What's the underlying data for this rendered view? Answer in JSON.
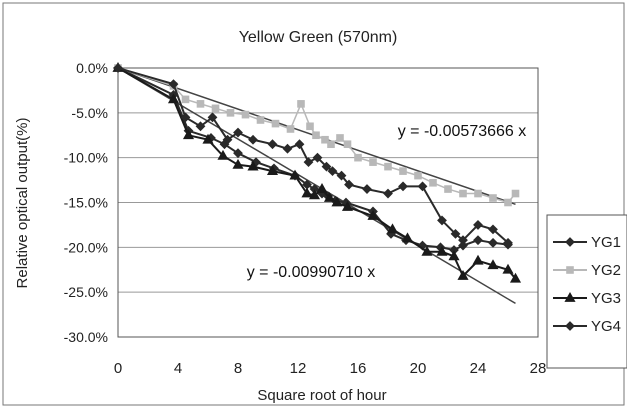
{
  "chart_data": {
    "type": "line",
    "title": "Yellow Green (570nm)",
    "xlabel": "Square root of hour",
    "ylabel": "Relative optical output(%)",
    "xlim": [
      0,
      28
    ],
    "ylim": [
      -30,
      0
    ],
    "x_ticks": [
      0,
      4,
      8,
      12,
      16,
      20,
      24,
      28
    ],
    "x_tick_labels": [
      "0",
      "4",
      "8",
      "12",
      "16",
      "20",
      "24",
      "28"
    ],
    "y_ticks": [
      0,
      -5,
      -10,
      -15,
      -20,
      -25,
      -30
    ],
    "y_tick_labels": [
      "0.0%",
      "-5.0%",
      "-10.0%",
      "-15.0%",
      "-20.0%",
      "-25.0%",
      "-30.0%"
    ],
    "grid": "horizontal",
    "legend_position": "right",
    "series": [
      {
        "name": "YG1",
        "color": "#2a2a2a",
        "marker": "diamond",
        "x": [
          0,
          3.7,
          4.7,
          6.2,
          7.1,
          8.0,
          9.2,
          10.4,
          11.8,
          12.6,
          13.1,
          13.6,
          14.0,
          14.5,
          15.2,
          17.0,
          18.2,
          19.2,
          20.3,
          21.5,
          22.4,
          23.0,
          24.0,
          25.0,
          26.0
        ],
        "y": [
          0,
          -3.0,
          -7.0,
          -7.8,
          -8.5,
          -9.5,
          -10.5,
          -11.2,
          -12.0,
          -13.0,
          -13.5,
          -14.0,
          -14.3,
          -14.8,
          -15.0,
          -16.0,
          -18.5,
          -19.2,
          -19.8,
          -20.0,
          -20.3,
          -19.8,
          -19.2,
          -19.5,
          -19.7
        ]
      },
      {
        "name": "YG2",
        "color": "#b8b8b8",
        "marker": "square",
        "x": [
          0,
          3.7,
          4.5,
          5.5,
          6.5,
          7.5,
          8.5,
          9.5,
          10.5,
          11.5,
          12.2,
          12.8,
          13.2,
          13.8,
          14.2,
          14.8,
          15.3,
          16.0,
          17.0,
          18.0,
          19.0,
          20.0,
          21.0,
          22.0,
          23.0,
          24.0,
          25.0,
          26.0,
          26.5
        ],
        "y": [
          0,
          -2.0,
          -3.5,
          -4.0,
          -4.5,
          -5.0,
          -5.2,
          -5.8,
          -6.2,
          -6.8,
          -4.0,
          -6.5,
          -7.5,
          -8.0,
          -8.5,
          -7.8,
          -8.5,
          -10.0,
          -10.5,
          -11.0,
          -11.5,
          -12.0,
          -12.8,
          -13.5,
          -14.0,
          -14.0,
          -14.5,
          -15.0,
          -14.0
        ]
      },
      {
        "name": "YG3",
        "color": "#1a1a1a",
        "marker": "triangle",
        "x": [
          0,
          3.7,
          4.7,
          6.0,
          7.0,
          8.0,
          9.0,
          10.3,
          11.8,
          12.6,
          13.1,
          13.6,
          14.1,
          14.6,
          15.3,
          17.0,
          18.3,
          19.3,
          20.6,
          21.6,
          22.4,
          23.0,
          24.0,
          25.0,
          26.0,
          26.5
        ],
        "y": [
          0,
          -3.5,
          -7.5,
          -8.0,
          -9.8,
          -10.8,
          -11.0,
          -11.5,
          -12.0,
          -14.0,
          -14.2,
          -13.5,
          -14.5,
          -15.0,
          -15.5,
          -16.5,
          -18.0,
          -19.0,
          -20.5,
          -20.5,
          -21.0,
          -23.2,
          -21.5,
          -22.0,
          -22.5,
          -23.5
        ]
      },
      {
        "name": "YG4",
        "color": "#2a2a2a",
        "marker": "diamond",
        "x": [
          0,
          3.7,
          4.5,
          5.5,
          6.3,
          7.3,
          8.0,
          9.0,
          10.3,
          11.3,
          12.1,
          12.7,
          13.3,
          13.9,
          14.3,
          14.9,
          15.4,
          16.6,
          18.0,
          19.0,
          20.3,
          21.6,
          22.5,
          23.0,
          24.0,
          25.0,
          26.0
        ],
        "y": [
          0,
          -1.8,
          -5.5,
          -6.5,
          -5.5,
          -8.0,
          -7.2,
          -8.0,
          -8.5,
          -9.0,
          -8.5,
          -10.5,
          -10.0,
          -11.0,
          -11.5,
          -12.0,
          -13.0,
          -13.5,
          -14.0,
          -13.2,
          -13.2,
          -17.0,
          -18.5,
          -19.2,
          -17.5,
          -18.0,
          -19.5
        ]
      }
    ],
    "trendlines": [
      {
        "slope": -0.57366,
        "label": "y = -0.00573666 x",
        "x_end": 26.5
      },
      {
        "slope": -0.99071,
        "label": "y = -0.00990710 x",
        "x_end": 26.5
      }
    ]
  }
}
